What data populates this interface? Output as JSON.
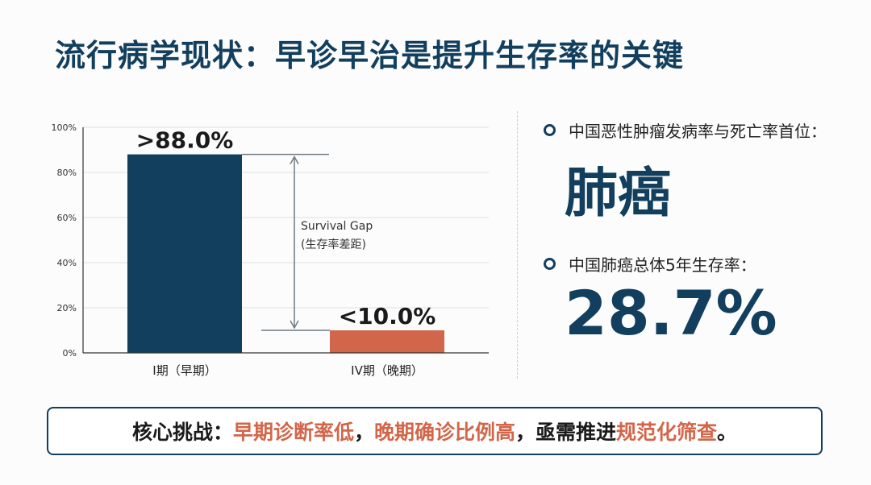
{
  "title": "流行病学现状：早诊早治是提升生存率的关键",
  "colors": {
    "navy": "#123f5e",
    "coral": "#d2664a"
  },
  "chart_data": {
    "type": "bar",
    "categories": [
      "I期（早期）",
      "IV期（晚期）"
    ],
    "values": [
      88.0,
      10.0
    ],
    "bar_colors": [
      "#123f5e",
      "#d2664a"
    ],
    "data_labels": [
      ">88.0%",
      "<10.0%"
    ],
    "ylim": [
      0,
      100
    ],
    "yticks": [
      0,
      20,
      40,
      60,
      80,
      100
    ],
    "ytick_labels": [
      "0%",
      "20%",
      "40%",
      "60%",
      "80%",
      "100%"
    ],
    "grid": true,
    "annotation": {
      "line1": "Survival Gap",
      "line2": "(生存率差距)"
    }
  },
  "stats": [
    {
      "label": "中国恶性肿瘤发病率与死亡率首位：",
      "value": "肺癌"
    },
    {
      "label": "中国肺癌总体5年生存率：",
      "value": "28.7%"
    }
  ],
  "banner": {
    "lead": "核心挑战：",
    "part1": "早期诊断率低",
    "sep1": "，",
    "part2": "晚期确诊比例高",
    "sep2": "，亟需推进",
    "part3": "规范化筛查",
    "end": "。"
  }
}
